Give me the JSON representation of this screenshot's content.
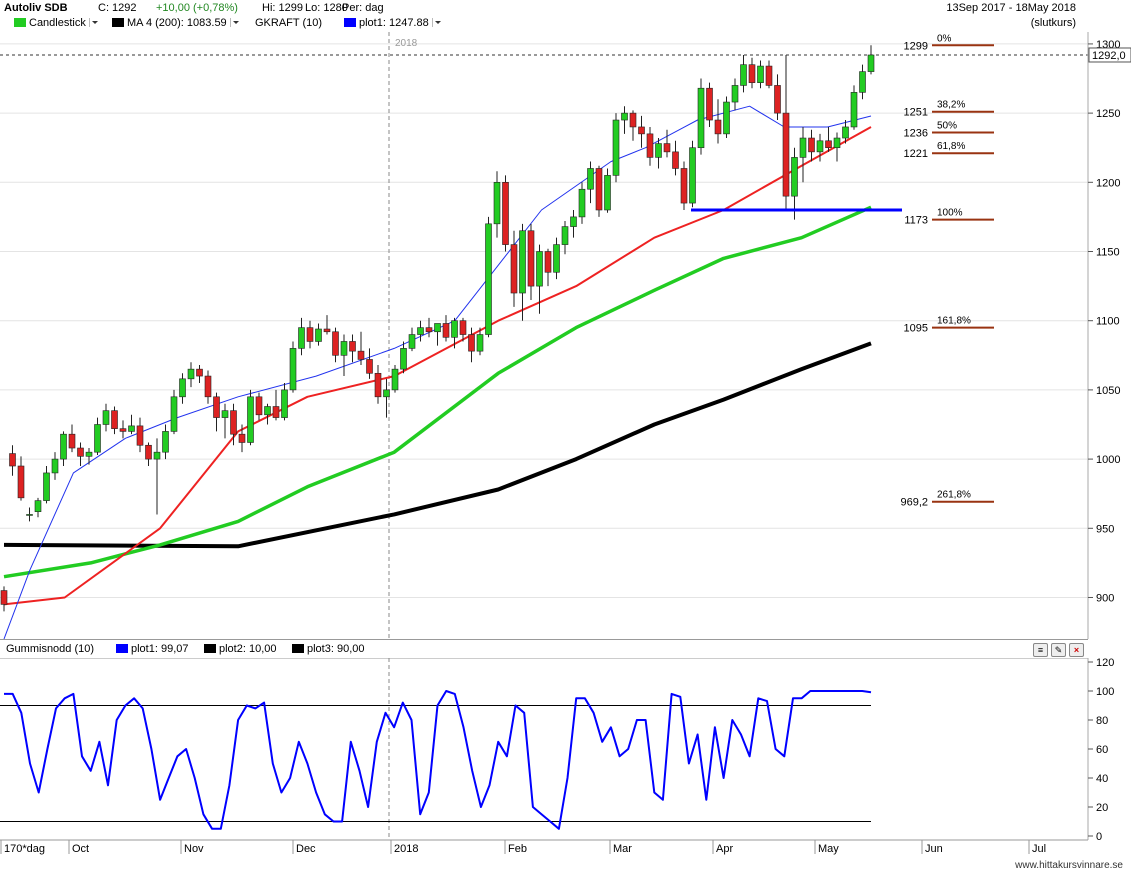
{
  "header": {
    "title": "Autoliv SDB",
    "close_label": "C: 1292",
    "change_label": "+10,00 (+0,78%)",
    "high_label": "Hi: 1299",
    "low_label": "Lo: 1280",
    "period_label": "Per: dag",
    "date_range": "13Sep 2017 - 18May 2018",
    "price_basis": "(slutkurs)"
  },
  "legend": [
    {
      "label": "Candlestick",
      "color": "#22cc22"
    },
    {
      "label": "MA 4 (200): 1083.59",
      "color": "#000000"
    },
    {
      "label": "GKRAFT (10)",
      "color": ""
    },
    {
      "label": "plot1: 1247.88",
      "color": "#0000ff"
    }
  ],
  "indicator": {
    "title": "Gummisnodd (10)",
    "legend": [
      {
        "label": "plot1: 99,07",
        "color": "#0000ff"
      },
      {
        "label": "plot2: 10,00",
        "color": "#000000"
      },
      {
        "label": "plot3: 90,00",
        "color": "#000000"
      }
    ]
  },
  "colors": {
    "up": "#22cc22",
    "down": "#dd2222",
    "ma_black": "#000000",
    "ma_green": "#22cc22",
    "ma_red": "#ee2222",
    "ma_blue": "#2233ee",
    "fib": "#993311",
    "support": "#0000ff"
  },
  "icons": [
    "document-icon",
    "wrench-icon",
    "close-icon"
  ],
  "footer": "www.hittakursvinnare.se",
  "chart_data": [
    {
      "type": "candlestick",
      "title": "Autoliv SDB",
      "year_marker": "2018",
      "x_labels": [
        "170*dag",
        "Oct",
        "Nov",
        "Dec",
        "2018",
        "Feb",
        "Mar",
        "Apr",
        "May",
        "Jun",
        "Jul"
      ],
      "y_ticks": [
        900,
        950,
        1000,
        1050,
        1100,
        1150,
        1200,
        1250,
        1300
      ],
      "ylim": [
        870,
        1305
      ],
      "last_price_label": "1292,0",
      "ohlc": [
        {
          "o": 905,
          "h": 908,
          "l": 890,
          "c": 895
        },
        {
          "o": 1004,
          "h": 1010,
          "l": 988,
          "c": 995
        },
        {
          "o": 995,
          "h": 1002,
          "l": 970,
          "c": 972
        },
        {
          "o": 960,
          "h": 965,
          "l": 955,
          "c": 960
        },
        {
          "o": 962,
          "h": 972,
          "l": 958,
          "c": 970
        },
        {
          "o": 970,
          "h": 995,
          "l": 968,
          "c": 990
        },
        {
          "o": 990,
          "h": 1005,
          "l": 985,
          "c": 1000
        },
        {
          "o": 1000,
          "h": 1020,
          "l": 995,
          "c": 1018
        },
        {
          "o": 1018,
          "h": 1025,
          "l": 1005,
          "c": 1008
        },
        {
          "o": 1008,
          "h": 1012,
          "l": 995,
          "c": 1002
        },
        {
          "o": 1002,
          "h": 1008,
          "l": 996,
          "c": 1005
        },
        {
          "o": 1005,
          "h": 1030,
          "l": 1003,
          "c": 1025
        },
        {
          "o": 1025,
          "h": 1040,
          "l": 1020,
          "c": 1035
        },
        {
          "o": 1035,
          "h": 1038,
          "l": 1018,
          "c": 1022
        },
        {
          "o": 1022,
          "h": 1028,
          "l": 1015,
          "c": 1020
        },
        {
          "o": 1020,
          "h": 1032,
          "l": 1018,
          "c": 1024
        },
        {
          "o": 1024,
          "h": 1030,
          "l": 1005,
          "c": 1010
        },
        {
          "o": 1010,
          "h": 1012,
          "l": 995,
          "c": 1000
        },
        {
          "o": 1000,
          "h": 1015,
          "l": 960,
          "c": 1005
        },
        {
          "o": 1005,
          "h": 1025,
          "l": 1000,
          "c": 1020
        },
        {
          "o": 1020,
          "h": 1050,
          "l": 1018,
          "c": 1045
        },
        {
          "o": 1045,
          "h": 1062,
          "l": 1040,
          "c": 1058
        },
        {
          "o": 1058,
          "h": 1070,
          "l": 1052,
          "c": 1065
        },
        {
          "o": 1065,
          "h": 1068,
          "l": 1055,
          "c": 1060
        },
        {
          "o": 1060,
          "h": 1064,
          "l": 1040,
          "c": 1045
        },
        {
          "o": 1045,
          "h": 1048,
          "l": 1020,
          "c": 1030
        },
        {
          "o": 1030,
          "h": 1040,
          "l": 1015,
          "c": 1035
        },
        {
          "o": 1035,
          "h": 1040,
          "l": 1010,
          "c": 1018
        },
        {
          "o": 1018,
          "h": 1025,
          "l": 1005,
          "c": 1012
        },
        {
          "o": 1012,
          "h": 1050,
          "l": 1010,
          "c": 1045
        },
        {
          "o": 1045,
          "h": 1048,
          "l": 1028,
          "c": 1032
        },
        {
          "o": 1032,
          "h": 1040,
          "l": 1025,
          "c": 1038
        },
        {
          "o": 1038,
          "h": 1050,
          "l": 1028,
          "c": 1030
        },
        {
          "o": 1030,
          "h": 1055,
          "l": 1028,
          "c": 1050
        },
        {
          "o": 1050,
          "h": 1085,
          "l": 1048,
          "c": 1080
        },
        {
          "o": 1080,
          "h": 1102,
          "l": 1075,
          "c": 1095
        },
        {
          "o": 1095,
          "h": 1100,
          "l": 1080,
          "c": 1085
        },
        {
          "o": 1085,
          "h": 1098,
          "l": 1082,
          "c": 1094
        },
        {
          "o": 1094,
          "h": 1104,
          "l": 1090,
          "c": 1092
        },
        {
          "o": 1092,
          "h": 1095,
          "l": 1070,
          "c": 1075
        },
        {
          "o": 1075,
          "h": 1090,
          "l": 1060,
          "c": 1085
        },
        {
          "o": 1085,
          "h": 1090,
          "l": 1070,
          "c": 1078
        },
        {
          "o": 1078,
          "h": 1092,
          "l": 1068,
          "c": 1072
        },
        {
          "o": 1072,
          "h": 1080,
          "l": 1058,
          "c": 1062
        },
        {
          "o": 1062,
          "h": 1068,
          "l": 1040,
          "c": 1045
        },
        {
          "o": 1045,
          "h": 1058,
          "l": 1030,
          "c": 1050
        },
        {
          "o": 1050,
          "h": 1068,
          "l": 1048,
          "c": 1065
        },
        {
          "o": 1065,
          "h": 1085,
          "l": 1062,
          "c": 1080
        },
        {
          "o": 1080,
          "h": 1095,
          "l": 1078,
          "c": 1090
        },
        {
          "o": 1090,
          "h": 1100,
          "l": 1085,
          "c": 1095
        },
        {
          "o": 1095,
          "h": 1102,
          "l": 1088,
          "c": 1092
        },
        {
          "o": 1092,
          "h": 1098,
          "l": 1082,
          "c": 1098
        },
        {
          "o": 1098,
          "h": 1104,
          "l": 1085,
          "c": 1088
        },
        {
          "o": 1088,
          "h": 1102,
          "l": 1080,
          "c": 1100
        },
        {
          "o": 1100,
          "h": 1102,
          "l": 1085,
          "c": 1090
        },
        {
          "o": 1090,
          "h": 1095,
          "l": 1070,
          "c": 1078
        },
        {
          "o": 1078,
          "h": 1095,
          "l": 1075,
          "c": 1090
        },
        {
          "o": 1090,
          "h": 1175,
          "l": 1088,
          "c": 1170
        },
        {
          "o": 1170,
          "h": 1208,
          "l": 1160,
          "c": 1200
        },
        {
          "o": 1200,
          "h": 1205,
          "l": 1150,
          "c": 1155
        },
        {
          "o": 1155,
          "h": 1165,
          "l": 1110,
          "c": 1120
        },
        {
          "o": 1120,
          "h": 1170,
          "l": 1100,
          "c": 1165
        },
        {
          "o": 1165,
          "h": 1170,
          "l": 1115,
          "c": 1125
        },
        {
          "o": 1125,
          "h": 1155,
          "l": 1105,
          "c": 1150
        },
        {
          "o": 1150,
          "h": 1152,
          "l": 1125,
          "c": 1135
        },
        {
          "o": 1135,
          "h": 1160,
          "l": 1130,
          "c": 1155
        },
        {
          "o": 1155,
          "h": 1172,
          "l": 1148,
          "c": 1168
        },
        {
          "o": 1168,
          "h": 1180,
          "l": 1160,
          "c": 1175
        },
        {
          "o": 1175,
          "h": 1200,
          "l": 1170,
          "c": 1195
        },
        {
          "o": 1195,
          "h": 1215,
          "l": 1185,
          "c": 1210
        },
        {
          "o": 1210,
          "h": 1212,
          "l": 1175,
          "c": 1180
        },
        {
          "o": 1180,
          "h": 1210,
          "l": 1178,
          "c": 1205
        },
        {
          "o": 1205,
          "h": 1250,
          "l": 1200,
          "c": 1245
        },
        {
          "o": 1245,
          "h": 1255,
          "l": 1235,
          "c": 1250
        },
        {
          "o": 1250,
          "h": 1252,
          "l": 1230,
          "c": 1240
        },
        {
          "o": 1240,
          "h": 1248,
          "l": 1225,
          "c": 1235
        },
        {
          "o": 1235,
          "h": 1240,
          "l": 1212,
          "c": 1218
        },
        {
          "o": 1218,
          "h": 1232,
          "l": 1210,
          "c": 1228
        },
        {
          "o": 1228,
          "h": 1238,
          "l": 1218,
          "c": 1222
        },
        {
          "o": 1222,
          "h": 1230,
          "l": 1205,
          "c": 1210
        },
        {
          "o": 1210,
          "h": 1215,
          "l": 1180,
          "c": 1185
        },
        {
          "o": 1185,
          "h": 1230,
          "l": 1182,
          "c": 1225
        },
        {
          "o": 1225,
          "h": 1275,
          "l": 1220,
          "c": 1268
        },
        {
          "o": 1268,
          "h": 1272,
          "l": 1240,
          "c": 1245
        },
        {
          "o": 1245,
          "h": 1260,
          "l": 1228,
          "c": 1235
        },
        {
          "o": 1235,
          "h": 1262,
          "l": 1232,
          "c": 1258
        },
        {
          "o": 1258,
          "h": 1275,
          "l": 1252,
          "c": 1270
        },
        {
          "o": 1270,
          "h": 1292,
          "l": 1265,
          "c": 1285
        },
        {
          "o": 1285,
          "h": 1290,
          "l": 1268,
          "c": 1272
        },
        {
          "o": 1272,
          "h": 1288,
          "l": 1268,
          "c": 1284
        },
        {
          "o": 1284,
          "h": 1288,
          "l": 1268,
          "c": 1270
        },
        {
          "o": 1270,
          "h": 1278,
          "l": 1245,
          "c": 1250
        },
        {
          "o": 1250,
          "h": 1292,
          "l": 1180,
          "c": 1190
        },
        {
          "o": 1190,
          "h": 1225,
          "l": 1173,
          "c": 1218
        },
        {
          "o": 1218,
          "h": 1240,
          "l": 1200,
          "c": 1232
        },
        {
          "o": 1232,
          "h": 1238,
          "l": 1215,
          "c": 1222
        },
        {
          "o": 1222,
          "h": 1235,
          "l": 1215,
          "c": 1230
        },
        {
          "o": 1230,
          "h": 1240,
          "l": 1222,
          "c": 1225
        },
        {
          "o": 1225,
          "h": 1236,
          "l": 1215,
          "c": 1232
        },
        {
          "o": 1232,
          "h": 1245,
          "l": 1228,
          "c": 1240
        },
        {
          "o": 1240,
          "h": 1270,
          "l": 1238,
          "c": 1265
        },
        {
          "o": 1265,
          "h": 1285,
          "l": 1260,
          "c": 1280
        },
        {
          "o": 1280,
          "h": 1299,
          "l": 1278,
          "c": 1292
        }
      ],
      "overlays": [
        {
          "name": "MA 4 (200)",
          "color": "#000000",
          "x_frac": [
            0.0,
            0.27,
            0.45,
            0.57,
            0.66,
            0.75,
            0.83,
            0.92,
            1.0
          ],
          "values": [
            938,
            937,
            960,
            978,
            1000,
            1025,
            1043,
            1065,
            1083.59
          ]
        },
        {
          "name": "",
          "color": "#22cc22",
          "x_frac": [
            0.0,
            0.1,
            0.18,
            0.27,
            0.35,
            0.45,
            0.57,
            0.66,
            0.75,
            0.83,
            0.92,
            1.0
          ],
          "values": [
            915,
            925,
            938,
            955,
            980,
            1005,
            1062,
            1095,
            1122,
            1145,
            1160,
            1182
          ]
        },
        {
          "name": "",
          "color": "#ee2222",
          "x_frac": [
            0.0,
            0.07,
            0.18,
            0.27,
            0.35,
            0.45,
            0.57,
            0.66,
            0.75,
            0.83,
            0.92,
            1.0
          ],
          "values": [
            895,
            900,
            950,
            1020,
            1045,
            1060,
            1100,
            1125,
            1160,
            1180,
            1212,
            1240
          ]
        },
        {
          "name": "plot1",
          "color": "#2233ee",
          "x_frac": [
            0.0,
            0.03,
            0.08,
            0.14,
            0.2,
            0.27,
            0.36,
            0.45,
            0.52,
            0.57,
            0.62,
            0.7,
            0.74,
            0.8,
            0.86,
            0.9,
            0.95,
            1.0
          ],
          "values": [
            870,
            920,
            990,
            1015,
            1030,
            1045,
            1060,
            1080,
            1100,
            1140,
            1180,
            1215,
            1225,
            1245,
            1255,
            1240,
            1240,
            1247.88
          ]
        }
      ],
      "fibonacci": [
        {
          "label": "0%",
          "price_label": "1299",
          "value": 1299
        },
        {
          "label": "38,2%",
          "price_label": "1251",
          "value": 1251
        },
        {
          "label": "50%",
          "price_label": "1236",
          "value": 1236
        },
        {
          "label": "61,8%",
          "price_label": "1221",
          "value": 1221
        },
        {
          "label": "100%",
          "price_label": "1173",
          "value": 1173
        },
        {
          "label": "161,8%",
          "price_label": "1095",
          "value": 1095
        },
        {
          "label": "261,8%",
          "price_label": "969,2",
          "value": 969.2
        }
      ],
      "support_level": 1180
    },
    {
      "type": "line",
      "title": "Gummisnodd (10)",
      "y_ticks": [
        0,
        20,
        40,
        60,
        80,
        100,
        120
      ],
      "ylim": [
        0,
        120
      ],
      "reference_lines": [
        10,
        90
      ],
      "series": [
        {
          "name": "plot1",
          "color": "#0000ff",
          "values": [
            98,
            98,
            85,
            50,
            30,
            60,
            88,
            95,
            98,
            55,
            45,
            65,
            35,
            80,
            90,
            95,
            88,
            60,
            25,
            40,
            55,
            60,
            40,
            15,
            5,
            5,
            35,
            80,
            90,
            88,
            92,
            50,
            30,
            40,
            65,
            50,
            30,
            15,
            10,
            10,
            65,
            45,
            20,
            65,
            85,
            75,
            92,
            80,
            15,
            30,
            90,
            100,
            98,
            75,
            45,
            20,
            35,
            65,
            55,
            90,
            85,
            20,
            15,
            10,
            5,
            40,
            95,
            95,
            85,
            65,
            75,
            55,
            60,
            80,
            80,
            30,
            25,
            98,
            96,
            50,
            70,
            25,
            75,
            40,
            80,
            70,
            55,
            95,
            93,
            60,
            55,
            95,
            95,
            100,
            100,
            100,
            100,
            100,
            100,
            100,
            99.07
          ]
        }
      ]
    }
  ]
}
